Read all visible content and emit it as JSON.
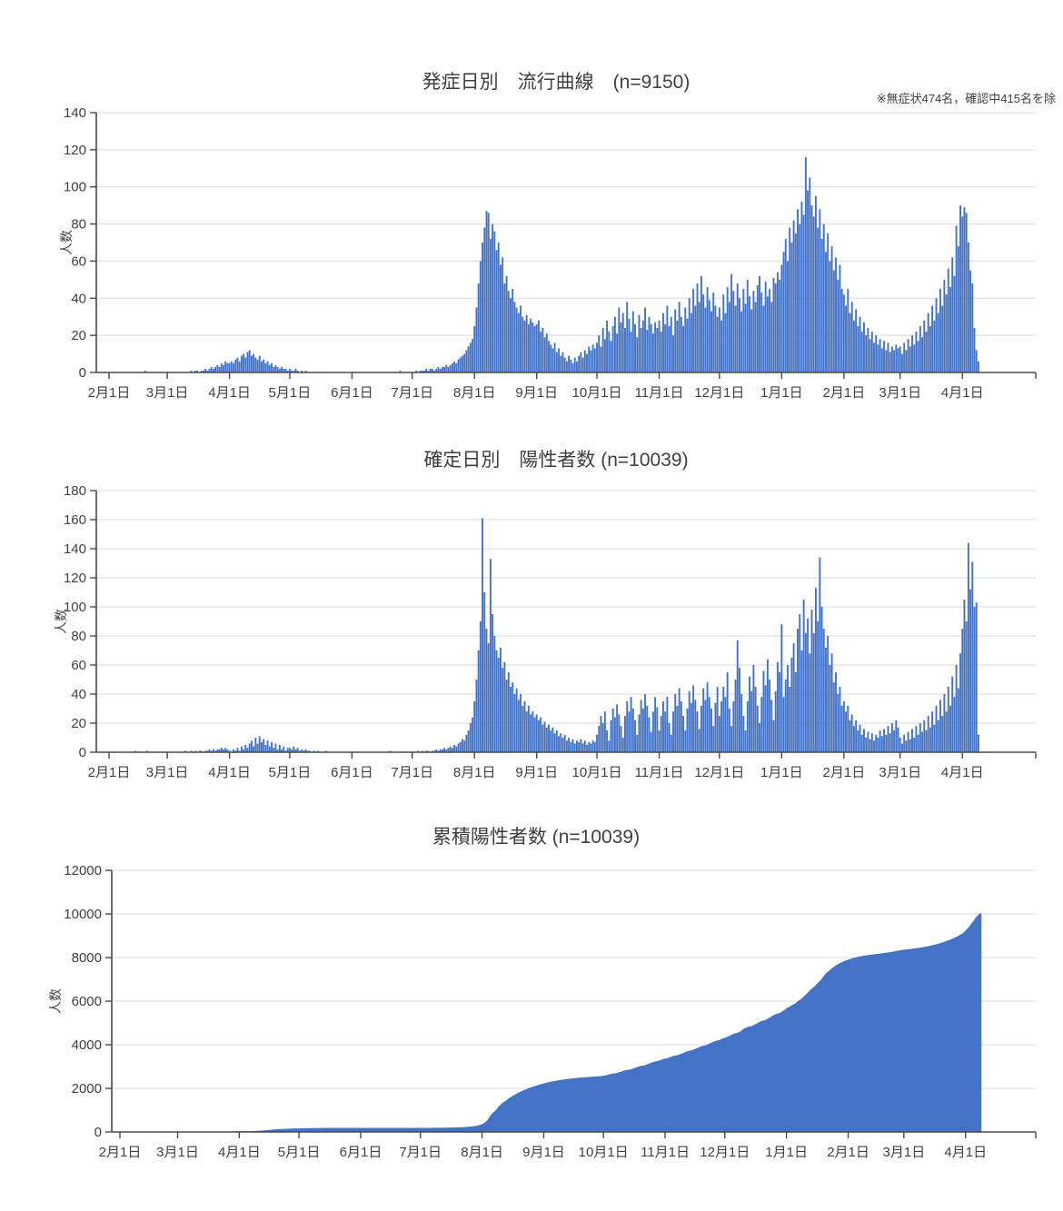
{
  "style": {
    "bar_color": "#4472C4",
    "grid_color": "#D9D9D9",
    "axis_color": "#4a4a4a",
    "text_color": "#404040",
    "background": "#ffffff"
  },
  "charts": [
    {
      "id": "onset",
      "type": "bar",
      "title": "発症日別　流行曲線　(n=9150)",
      "note": "※無症状474名，確認中415名を除",
      "ylabel": "人数",
      "ylim": [
        0,
        140
      ],
      "yticks": [
        0,
        20,
        40,
        60,
        80,
        100,
        120,
        140
      ],
      "xtick_labels": [
        "2月1日",
        "3月1日",
        "4月1日",
        "5月1日",
        "6月1日",
        "7月1日",
        "8月1日",
        "9月1日",
        "10月1日",
        "11月1日",
        "12月1日",
        "1月1日",
        "2月1日",
        "3月1日",
        "4月1日"
      ],
      "xtick_day_index": [
        0,
        29,
        60,
        90,
        121,
        151,
        182,
        213,
        243,
        274,
        304,
        335,
        366,
        394,
        425
      ],
      "grid": true,
      "legend": "none",
      "values": [
        0,
        0,
        0,
        0,
        0,
        0,
        0,
        0,
        0,
        0,
        0,
        0,
        0,
        0,
        0,
        0,
        0,
        0,
        1,
        0,
        0,
        0,
        0,
        0,
        0,
        0,
        0,
        0,
        0,
        0,
        0,
        0,
        0,
        0,
        0,
        0,
        0,
        0,
        0,
        0,
        0,
        1,
        0,
        1,
        1,
        0,
        1,
        1,
        2,
        1,
        2,
        3,
        2,
        3,
        4,
        3,
        5,
        4,
        6,
        5,
        5,
        6,
        5,
        7,
        8,
        6,
        9,
        10,
        8,
        11,
        12,
        9,
        10,
        8,
        7,
        9,
        6,
        7,
        5,
        6,
        4,
        5,
        3,
        4,
        3,
        2,
        3,
        2,
        2,
        1,
        2,
        1,
        1,
        2,
        1,
        0,
        1,
        0,
        1,
        0,
        0,
        0,
        0,
        0,
        0,
        0,
        0,
        0,
        0,
        0,
        0,
        0,
        0,
        0,
        0,
        0,
        0,
        0,
        0,
        0,
        0,
        0,
        0,
        0,
        0,
        0,
        0,
        0,
        0,
        0,
        0,
        0,
        0,
        0,
        0,
        0,
        0,
        0,
        0,
        0,
        0,
        0,
        0,
        0,
        0,
        1,
        0,
        0,
        0,
        0,
        0,
        0,
        0,
        1,
        0,
        1,
        1,
        1,
        2,
        1,
        2,
        2,
        1,
        2,
        3,
        2,
        3,
        3,
        4,
        3,
        4,
        5,
        6,
        5,
        7,
        8,
        9,
        10,
        12,
        14,
        16,
        18,
        25,
        35,
        48,
        60,
        70,
        78,
        87,
        86,
        72,
        80,
        76,
        66,
        70,
        58,
        62,
        48,
        52,
        44,
        40,
        45,
        38,
        35,
        32,
        36,
        30,
        28,
        31,
        26,
        29,
        27,
        25,
        26,
        28,
        22,
        24,
        19,
        21,
        17,
        15,
        13,
        16,
        11,
        13,
        9,
        11,
        8,
        6,
        9,
        7,
        5,
        8,
        6,
        9,
        11,
        8,
        12,
        10,
        14,
        12,
        15,
        13,
        16,
        20,
        14,
        24,
        18,
        28,
        22,
        17,
        25,
        30,
        21,
        35,
        27,
        32,
        24,
        38,
        29,
        22,
        33,
        26,
        19,
        31,
        24,
        28,
        35,
        23,
        30,
        26,
        21,
        27,
        24,
        28,
        22,
        32,
        26,
        36,
        25,
        30,
        20,
        34,
        28,
        38,
        30,
        25,
        35,
        29,
        40,
        32,
        45,
        36,
        48,
        38,
        52,
        42,
        35,
        46,
        39,
        33,
        43,
        36,
        30,
        35,
        28,
        42,
        32,
        46,
        38,
        53,
        44,
        36,
        48,
        40,
        33,
        45,
        37,
        50,
        41,
        34,
        44,
        38,
        47,
        52,
        43,
        36,
        49,
        41,
        45,
        38,
        51,
        48,
        54,
        50,
        58,
        65,
        72,
        60,
        78,
        70,
        82,
        75,
        88,
        80,
        92,
        85,
        116,
        98,
        105,
        90,
        84,
        95,
        78,
        88,
        72,
        80,
        65,
        75,
        60,
        68,
        55,
        62,
        50,
        58,
        45,
        42,
        36,
        45,
        32,
        38,
        28,
        34,
        25,
        30,
        22,
        27,
        20,
        24,
        18,
        22,
        16,
        20,
        15,
        18,
        13,
        17,
        12,
        16,
        11,
        14,
        12,
        15,
        13,
        14,
        10,
        16,
        12,
        18,
        14,
        20,
        15,
        22,
        17,
        25,
        19,
        28,
        22,
        32,
        25,
        36,
        28,
        40,
        32,
        45,
        36,
        50,
        42,
        56,
        46,
        62,
        52,
        79,
        68,
        90,
        84,
        89,
        86,
        70,
        55,
        48,
        24,
        12,
        6
      ]
    },
    {
      "id": "confirmed",
      "type": "bar",
      "title": "確定日別　陽性者数 (n=10039)",
      "ylabel": "人数",
      "ylim": [
        0,
        180
      ],
      "yticks": [
        0,
        20,
        40,
        60,
        80,
        100,
        120,
        140,
        160,
        180
      ],
      "xtick_labels": [
        "2月1日",
        "3月1日",
        "4月1日",
        "5月1日",
        "6月1日",
        "7月1日",
        "8月1日",
        "9月1日",
        "10月1日",
        "11月1日",
        "12月1日",
        "1月1日",
        "2月1日",
        "3月1日",
        "4月1日"
      ],
      "xtick_day_index": [
        0,
        29,
        60,
        90,
        121,
        151,
        182,
        213,
        243,
        274,
        304,
        335,
        366,
        394,
        425
      ],
      "grid": true,
      "legend": "none",
      "values": [
        0,
        0,
        0,
        0,
        0,
        0,
        0,
        0,
        0,
        0,
        0,
        0,
        0,
        1,
        0,
        0,
        0,
        0,
        0,
        1,
        0,
        0,
        0,
        0,
        0,
        0,
        0,
        0,
        0,
        0,
        0,
        0,
        0,
        0,
        0,
        0,
        0,
        0,
        1,
        0,
        0,
        1,
        0,
        1,
        0,
        1,
        1,
        0,
        1,
        1,
        2,
        1,
        2,
        1,
        2,
        2,
        3,
        2,
        3,
        2,
        1,
        0,
        2,
        1,
        3,
        1,
        4,
        2,
        5,
        3,
        6,
        8,
        4,
        10,
        6,
        11,
        7,
        9,
        5,
        8,
        4,
        7,
        3,
        6,
        2,
        5,
        2,
        4,
        1,
        3,
        3,
        2,
        4,
        2,
        3,
        1,
        2,
        1,
        2,
        1,
        1,
        0,
        1,
        0,
        1,
        0,
        0,
        0,
        1,
        0,
        0,
        0,
        0,
        0,
        0,
        0,
        0,
        0,
        0,
        0,
        0,
        0,
        0,
        0,
        0,
        0,
        0,
        0,
        0,
        0,
        0,
        0,
        0,
        0,
        0,
        0,
        0,
        0,
        0,
        0,
        1,
        0,
        0,
        0,
        0,
        0,
        0,
        0,
        0,
        0,
        0,
        0,
        0,
        0,
        1,
        0,
        1,
        0,
        1,
        1,
        0,
        1,
        1,
        2,
        1,
        2,
        2,
        3,
        2,
        3,
        4,
        3,
        5,
        4,
        6,
        7,
        9,
        8,
        12,
        15,
        20,
        24,
        35,
        50,
        70,
        90,
        161,
        110,
        85,
        75,
        133,
        95,
        80,
        70,
        65,
        72,
        58,
        62,
        50,
        55,
        45,
        48,
        40,
        44,
        36,
        40,
        32,
        35,
        28,
        32,
        26,
        28,
        24,
        26,
        22,
        24,
        19,
        21,
        17,
        19,
        15,
        17,
        13,
        15,
        11,
        13,
        10,
        12,
        8,
        10,
        7,
        9,
        6,
        8,
        7,
        9,
        6,
        8,
        5,
        7,
        6,
        8,
        7,
        12,
        18,
        25,
        20,
        28,
        15,
        8,
        22,
        30,
        24,
        33,
        26,
        18,
        10,
        25,
        35,
        28,
        38,
        30,
        22,
        12,
        26,
        36,
        30,
        40,
        32,
        24,
        14,
        28,
        38,
        31,
        15,
        25,
        35,
        28,
        38,
        20,
        12,
        28,
        40,
        32,
        44,
        35,
        25,
        15,
        30,
        42,
        34,
        46,
        36,
        28,
        16,
        32,
        44,
        36,
        48,
        38,
        30,
        18,
        34,
        45,
        25,
        35,
        45,
        38,
        55,
        30,
        18,
        35,
        50,
        77,
        58,
        40,
        25,
        15,
        35,
        52,
        42,
        60,
        45,
        32,
        20,
        38,
        56,
        46,
        64,
        50,
        36,
        22,
        42,
        62,
        55,
        88,
        38,
        50,
        60,
        45,
        65,
        75,
        55,
        85,
        95,
        70,
        105,
        82,
        92,
        68,
        98,
        82,
        113,
        90,
        134,
        100,
        85,
        72,
        80,
        60,
        68,
        48,
        55,
        40,
        45,
        32,
        35,
        28,
        32,
        22,
        26,
        18,
        22,
        15,
        19,
        12,
        16,
        10,
        14,
        9,
        13,
        8,
        12,
        10,
        15,
        11,
        16,
        12,
        18,
        13,
        20,
        15,
        22,
        17,
        10,
        6,
        12,
        8,
        14,
        9,
        16,
        10,
        18,
        12,
        20,
        14,
        22,
        15,
        25,
        17,
        28,
        19,
        32,
        22,
        36,
        25,
        40,
        28,
        45,
        32,
        52,
        38,
        60,
        44,
        68,
        85,
        105,
        90,
        144,
        112,
        131,
        100,
        103,
        12
      ]
    },
    {
      "id": "cumulative",
      "type": "area",
      "title": "累積陽性者数 (n=10039)",
      "ylabel": "人数",
      "ylim": [
        0,
        12000
      ],
      "yticks": [
        0,
        2000,
        4000,
        6000,
        8000,
        10000,
        12000
      ],
      "xtick_labels": [
        "2月1日",
        "3月1日",
        "4月1日",
        "5月1日",
        "6月1日",
        "7月1日",
        "8月1日",
        "9月1日",
        "10月1日",
        "11月1日",
        "12月1日",
        "1月1日",
        "2月1日",
        "3月1日",
        "4月1日"
      ],
      "xtick_day_index": [
        0,
        29,
        60,
        90,
        121,
        151,
        182,
        213,
        243,
        274,
        304,
        335,
        366,
        394,
        425
      ],
      "grid": true,
      "legend": "none",
      "cumulative_of": "confirmed",
      "approx_values_at_ticks": [
        0,
        2,
        33,
        166,
        191,
        192,
        330,
        2204,
        2569,
        3347,
        4296,
        5599,
        7874,
        8354,
        9151
      ],
      "final_total": 10039
    }
  ]
}
